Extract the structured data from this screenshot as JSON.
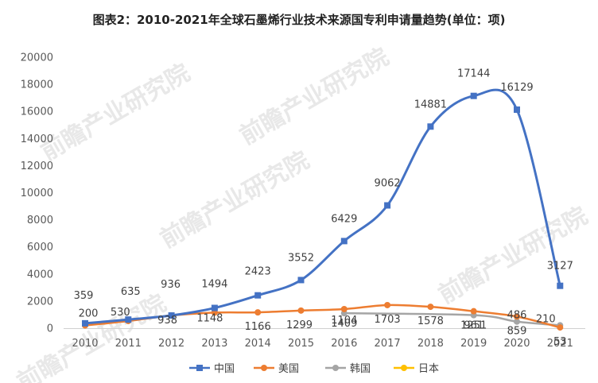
{
  "chart_data": {
    "type": "line",
    "title": "图表2：2010-2021年全球石墨烯行业技术来源国专利申请量趋势(单位：项)",
    "categories": [
      "2010",
      "2011",
      "2012",
      "2013",
      "2014",
      "2015",
      "2016",
      "2017",
      "2018",
      "2019",
      "2020",
      "2021"
    ],
    "ylim": [
      0,
      20000
    ],
    "yticks": [
      "0",
      "2000",
      "4000",
      "6000",
      "8000",
      "10000",
      "12000",
      "14000",
      "16000",
      "18000",
      "20000"
    ],
    "grid": false,
    "legend_position": "bottom",
    "series": [
      {
        "name": "中国",
        "color": "#4472C4",
        "marker": "square",
        "values": [
          359,
          635,
          936,
          1494,
          2423,
          3552,
          6429,
          9062,
          14881,
          17144,
          16129,
          3127
        ]
      },
      {
        "name": "美国",
        "color": "#ED7D31",
        "marker": "circle",
        "values": [
          200,
          530,
          938,
          1148,
          1166,
          1299,
          1409,
          1703,
          1578,
          1251,
          859,
          53
        ]
      },
      {
        "name": "韩国",
        "color": "#A5A5A5",
        "marker": "circle",
        "values": [
          null,
          null,
          null,
          null,
          null,
          null,
          1104,
          null,
          null,
          961,
          486,
          210
        ]
      },
      {
        "name": "日本",
        "color": "#FFC000",
        "marker": "circle",
        "values": [
          null,
          null,
          null,
          null,
          null,
          null,
          null,
          null,
          null,
          null,
          null,
          null
        ]
      }
    ],
    "data_labels": {
      "中国": [
        "359",
        "635",
        "936",
        "1494",
        "2423",
        "3552",
        "6429",
        "9062",
        "14881",
        "17144",
        "16129",
        "3127"
      ],
      "美国": [
        "200",
        "530",
        "938",
        "1148",
        "1166",
        "1299",
        "1409",
        "1703",
        "1578",
        "1251",
        "859",
        "53"
      ],
      "韩国": [
        "",
        "",
        "",
        "",
        "",
        "",
        "1104",
        "",
        "",
        "961",
        "486",
        "210"
      ]
    }
  },
  "watermark": "前瞻产业研究院"
}
